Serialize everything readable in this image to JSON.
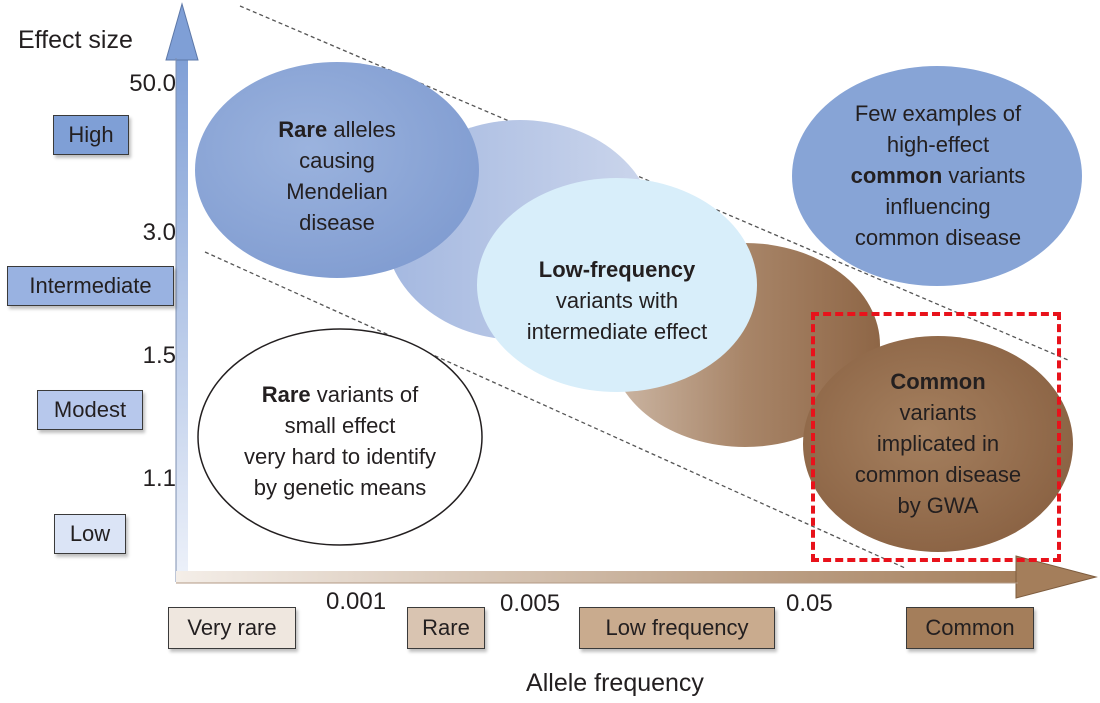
{
  "axes": {
    "y_title": "Effect size",
    "x_title": "Allele frequency",
    "y_ticks": [
      "50.0",
      "3.0",
      "1.5",
      "1.1"
    ],
    "x_ticks": [
      "0.001",
      "0.005",
      "0.05"
    ]
  },
  "effect_categories": [
    {
      "label": "High",
      "color": "#7f9fd6"
    },
    {
      "label": "Intermediate",
      "color": "#99b2e1"
    },
    {
      "label": "Modest",
      "color": "#b7c8ec"
    },
    {
      "label": "Low",
      "color": "#dbe4f6"
    }
  ],
  "frequency_categories": [
    {
      "label": "Very rare",
      "color": "#efe7df"
    },
    {
      "label": "Rare",
      "color": "#d9c4b1"
    },
    {
      "label": "Low frequency",
      "color": "#c9ab8e"
    },
    {
      "label": "Common",
      "color": "#a47e5b"
    }
  ],
  "regions": {
    "rare_mendelian": {
      "bold": "Rare",
      "line1_rest": " alleles",
      "line2": "causing",
      "line3": "Mendelian",
      "line4": "disease"
    },
    "low_frequency": {
      "bold": "Low-frequency",
      "line2": "variants with",
      "line3": "intermediate effect"
    },
    "high_effect_common": {
      "line1": "Few examples of",
      "line2": "high-effect",
      "bold": "common",
      "line3_rest": " variants",
      "line4": "influencing",
      "line5": "common disease"
    },
    "rare_small": {
      "bold": "Rare",
      "line1_rest": " variants of",
      "line2": "small effect",
      "line3": "very hard to identify",
      "line4": "by genetic means"
    },
    "common_gwa": {
      "bold": "Common",
      "line2": "variants",
      "line3": "implicated in",
      "line4": "common disease",
      "line5": "by GWA"
    }
  },
  "colors": {
    "blue_region": "#8fa9d8",
    "light_blue_region": "#d8eefa",
    "brown_region": "#9b7455",
    "axis": "#7f9fd6",
    "axis_x": "#a47e5b",
    "highlight": "#e8121b"
  }
}
